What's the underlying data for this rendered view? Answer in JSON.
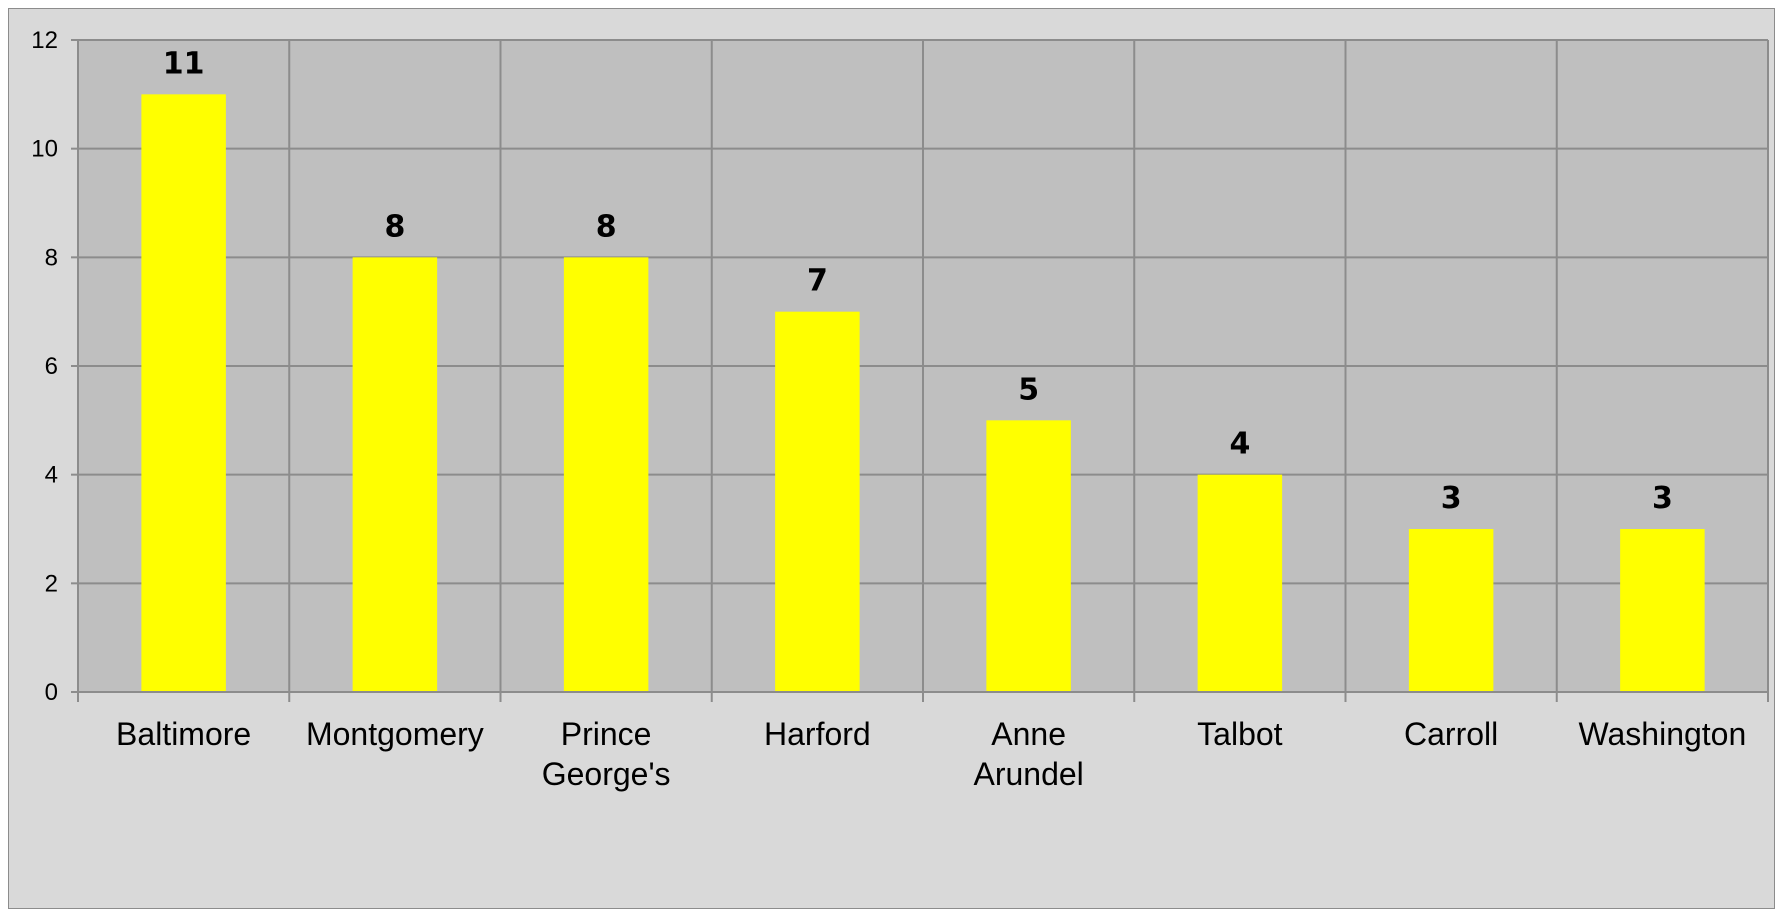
{
  "chart_data": {
    "type": "bar",
    "title": "",
    "xlabel": "",
    "ylabel": "",
    "categories": [
      [
        "Baltimore"
      ],
      [
        "Montgomery"
      ],
      [
        "Prince",
        "George's"
      ],
      [
        "Harford"
      ],
      [
        "Anne",
        "Arundel"
      ],
      [
        "Talbot"
      ],
      [
        "Carroll"
      ],
      [
        "Washington"
      ]
    ],
    "values": [
      11,
      8,
      8,
      7,
      5,
      4,
      3,
      3
    ],
    "data_labels": [
      "11",
      "8",
      "8",
      "7",
      "5",
      "4",
      "3",
      "3"
    ],
    "ylim": [
      0,
      12
    ],
    "yticks": [
      "0",
      "2",
      "4",
      "6",
      "8",
      "10",
      "12"
    ],
    "grid": true,
    "legend": "none",
    "colors": {
      "bar": "#ffff00",
      "plot_background": "#bfbfbf",
      "chart_background": "#d9d9d9",
      "gridline": "#8c8c8c"
    }
  }
}
